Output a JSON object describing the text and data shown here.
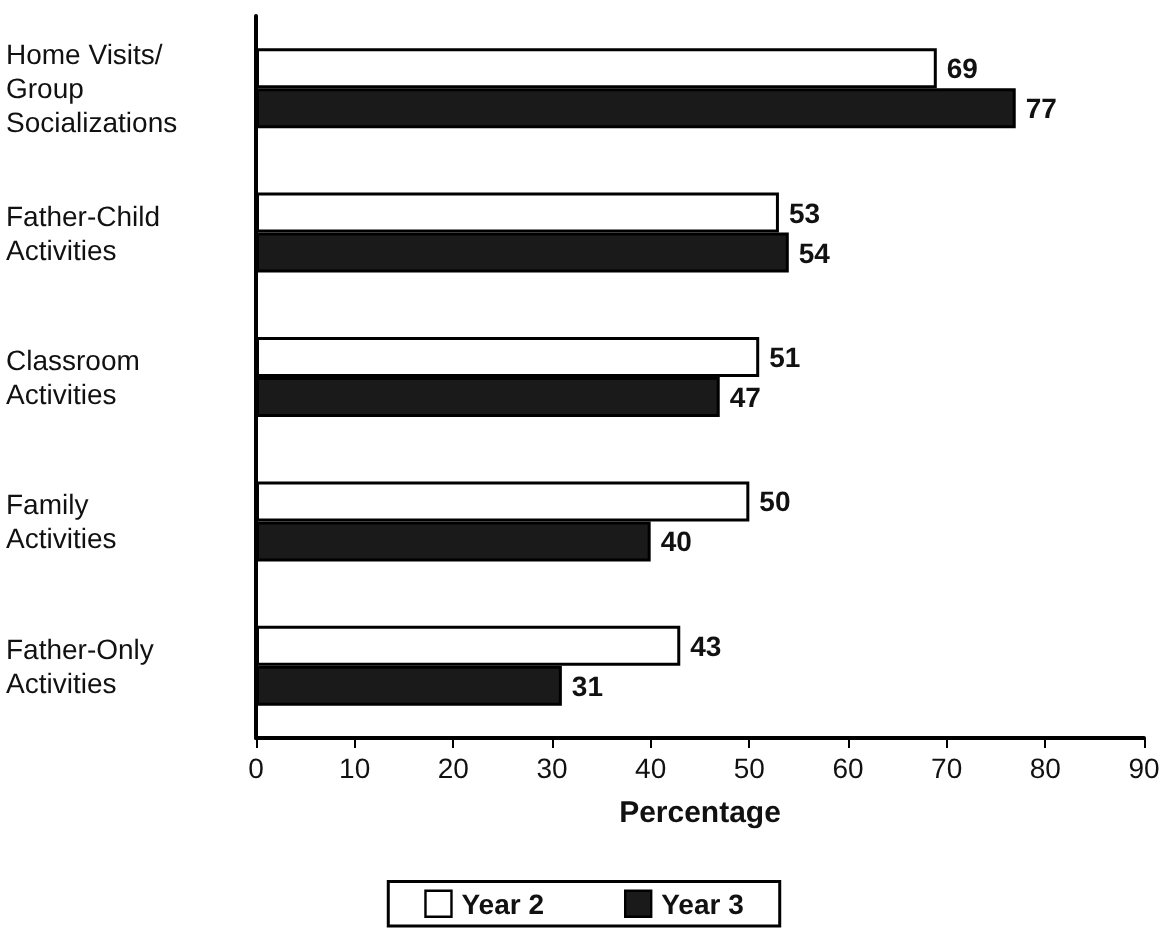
{
  "chart_data": {
    "type": "bar",
    "orientation": "horizontal",
    "categories": [
      "Home Visits/\nGroup\nSocializations",
      "Father-Child\nActivities",
      "Classroom\nActivities",
      "Family\nActivities",
      "Father-Only\nActivities"
    ],
    "series": [
      {
        "name": "Year 2",
        "color": "#ffffff",
        "values": [
          69,
          53,
          51,
          50,
          43
        ]
      },
      {
        "name": "Year 3",
        "color": "#1a1a1a",
        "values": [
          77,
          54,
          47,
          40,
          31
        ]
      }
    ],
    "xlabel": "Percentage",
    "xlim": [
      0,
      90
    ],
    "xticks": [
      0,
      10,
      20,
      30,
      40,
      50,
      60,
      70,
      80,
      90
    ],
    "data_labels": true,
    "grid": false,
    "legend": "bottom"
  }
}
